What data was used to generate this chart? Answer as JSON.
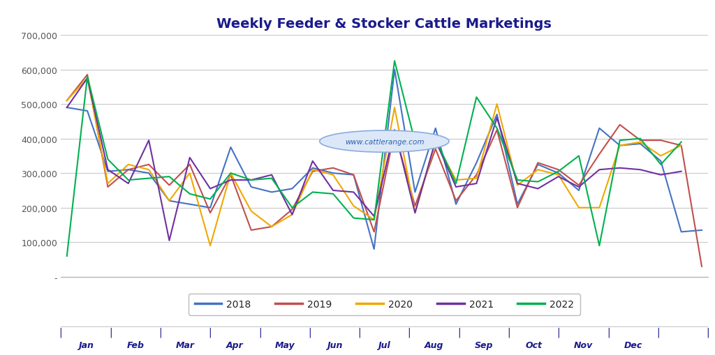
{
  "title": "Weekly Feeder & Stocker Cattle Marketings",
  "title_color": "#1a1a8c",
  "background_color": "#ffffff",
  "grid_color": "#c8c8c8",
  "ylim": [
    0,
    700000
  ],
  "yticks": [
    0,
    100000,
    200000,
    300000,
    400000,
    500000,
    600000,
    700000
  ],
  "ytick_labels": [
    "-",
    "100,000",
    "200,000",
    "300,000",
    "400,000",
    "500,000",
    "600,000",
    "700,000"
  ],
  "watermark": "www.cattlerange.com",
  "series": {
    "2018": {
      "color": "#4472c4",
      "values": [
        490000,
        480000,
        305000,
        310000,
        300000,
        220000,
        210000,
        200000,
        375000,
        260000,
        245000,
        255000,
        315000,
        300000,
        295000,
        80000,
        600000,
        245000,
        430000,
        210000,
        330000,
        470000,
        210000,
        325000,
        300000,
        250000,
        430000,
        380000,
        385000,
        335000,
        130000,
        135000
      ]
    },
    "2019": {
      "color": "#c0504d",
      "values": [
        510000,
        585000,
        260000,
        310000,
        325000,
        265000,
        325000,
        185000,
        295000,
        135000,
        145000,
        195000,
        305000,
        315000,
        295000,
        130000,
        420000,
        205000,
        370000,
        220000,
        295000,
        425000,
        200000,
        330000,
        310000,
        265000,
        355000,
        440000,
        395000,
        395000,
        380000,
        30000
      ]
    },
    "2020": {
      "color": "#f0a800",
      "values": [
        510000,
        575000,
        270000,
        325000,
        310000,
        220000,
        300000,
        90000,
        300000,
        190000,
        145000,
        180000,
        310000,
        295000,
        205000,
        165000,
        490000,
        185000,
        390000,
        280000,
        285000,
        500000,
        265000,
        310000,
        295000,
        200000,
        200000,
        380000,
        390000,
        350000,
        380000,
        null
      ]
    },
    "2021": {
      "color": "#7030a0",
      "values": [
        490000,
        575000,
        310000,
        270000,
        395000,
        105000,
        345000,
        255000,
        280000,
        280000,
        295000,
        180000,
        335000,
        250000,
        245000,
        175000,
        425000,
        185000,
        395000,
        260000,
        270000,
        460000,
        270000,
        255000,
        290000,
        260000,
        310000,
        315000,
        310000,
        295000,
        305000,
        null
      ]
    },
    "2022": {
      "color": "#00b050",
      "values": [
        60000,
        580000,
        340000,
        280000,
        285000,
        290000,
        240000,
        225000,
        300000,
        280000,
        285000,
        200000,
        245000,
        240000,
        170000,
        165000,
        625000,
        390000,
        400000,
        270000,
        520000,
        430000,
        280000,
        275000,
        305000,
        350000,
        90000,
        395000,
        400000,
        325000,
        390000,
        null
      ]
    }
  },
  "month_names": [
    "Jan",
    "Feb",
    "Mar",
    "Apr",
    "May",
    "Jun",
    "Jul",
    "Aug",
    "Sep",
    "Oct",
    "Nov",
    "Dec"
  ],
  "x_tick_color": "#1a1a8c",
  "legend_items": [
    "2018",
    "2019",
    "2020",
    "2021",
    "2022"
  ],
  "legend_colors": [
    "#4472c4",
    "#c0504d",
    "#f0a800",
    "#7030a0",
    "#00b050"
  ]
}
